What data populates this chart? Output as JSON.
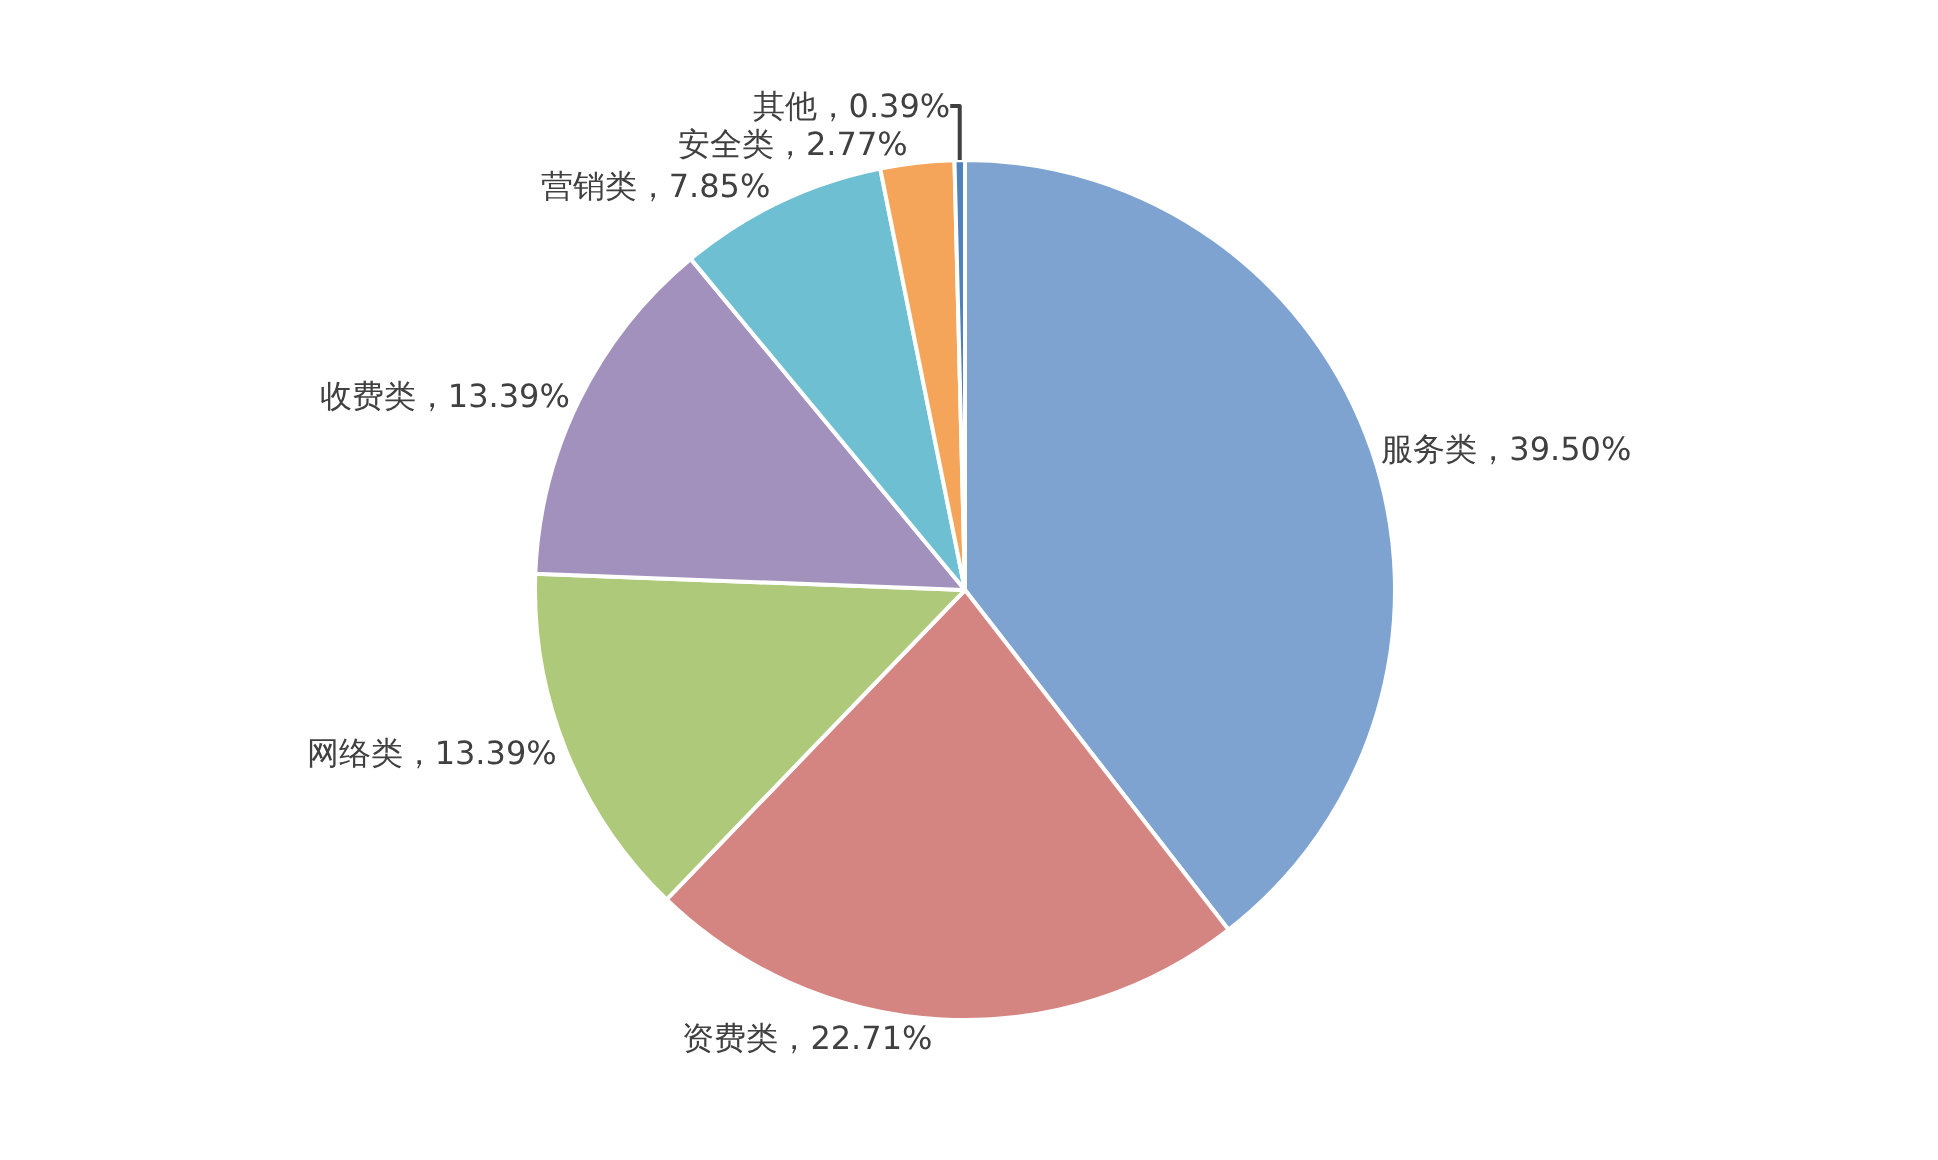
{
  "chart_data": {
    "type": "pie",
    "categories": [
      "服务类",
      "资费类",
      "网络类",
      "收费类",
      "营销类",
      "安全类",
      "其他"
    ],
    "values": [
      39.5,
      22.71,
      13.39,
      13.39,
      7.85,
      2.77,
      0.39
    ],
    "value_labels": [
      "39.50%",
      "22.71%",
      "13.39%",
      "13.39%",
      "7.85%",
      "2.77%",
      "0.39%"
    ],
    "colors": [
      "#7fa3d0",
      "#d48582",
      "#afc97a",
      "#a290bd",
      "#6fbfd3",
      "#f5a55a",
      "#4f81bd"
    ],
    "legend": false
  }
}
